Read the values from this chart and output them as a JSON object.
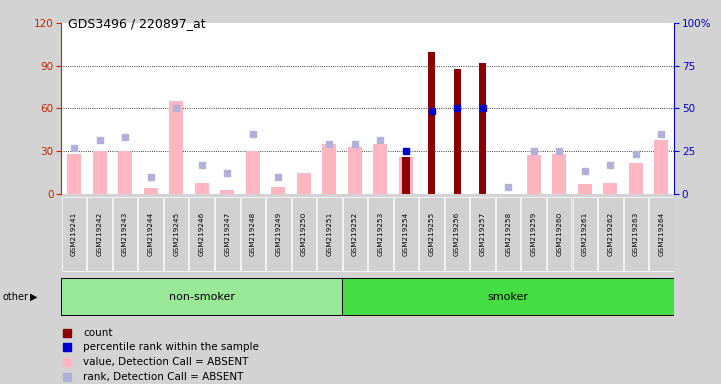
{
  "title": "GDS3496 / 220897_at",
  "samples": [
    "GSM219241",
    "GSM219242",
    "GSM219243",
    "GSM219244",
    "GSM219245",
    "GSM219246",
    "GSM219247",
    "GSM219248",
    "GSM219249",
    "GSM219250",
    "GSM219251",
    "GSM219252",
    "GSM219253",
    "GSM219254",
    "GSM219255",
    "GSM219256",
    "GSM219257",
    "GSM219258",
    "GSM219259",
    "GSM219260",
    "GSM219261",
    "GSM219262",
    "GSM219263",
    "GSM219264"
  ],
  "non_smoker_count": 11,
  "smoker_count": 13,
  "pink_bars": [
    28,
    30,
    30,
    4,
    65,
    8,
    3,
    30,
    5,
    15,
    35,
    33,
    35,
    26,
    0,
    0,
    0,
    0,
    27,
    28,
    7,
    8,
    22,
    38
  ],
  "red_bars": [
    0,
    0,
    0,
    0,
    0,
    0,
    0,
    0,
    0,
    0,
    0,
    0,
    0,
    26,
    100,
    88,
    92,
    0,
    0,
    0,
    0,
    0,
    0,
    0
  ],
  "blue_squares_y": [
    null,
    null,
    null,
    null,
    null,
    null,
    null,
    null,
    null,
    null,
    null,
    null,
    null,
    30,
    58,
    60,
    60,
    null,
    null,
    null,
    null,
    null,
    null,
    null
  ],
  "light_blue_squares_y": [
    32,
    38,
    40,
    12,
    60,
    20,
    15,
    42,
    12,
    null,
    35,
    35,
    38,
    null,
    null,
    null,
    null,
    5,
    30,
    30,
    16,
    20,
    28,
    42
  ],
  "left_ylim": [
    0,
    120
  ],
  "left_yticks": [
    0,
    30,
    60,
    90,
    120
  ],
  "right_yticks": [
    0,
    25,
    50,
    75,
    100
  ],
  "right_yticklabels": [
    "0",
    "25",
    "50",
    "75",
    "100%"
  ],
  "bg_color": "#d3d3d3",
  "plot_bg_color": "#ffffff",
  "non_smoker_color": "#98e898",
  "smoker_color": "#44dd44",
  "pink_color": "#ffb6c1",
  "red_color": "#8b0000",
  "blue_color": "#0000cc",
  "light_blue_color": "#b0b0d8",
  "left_tick_color": "#cc2200",
  "right_tick_color": "#0000cc",
  "legend_labels": [
    "count",
    "percentile rank within the sample",
    "value, Detection Call = ABSENT",
    "rank, Detection Call = ABSENT"
  ],
  "legend_colors": [
    "#8b0000",
    "#0000cc",
    "#ffb6c1",
    "#b0b0d8"
  ]
}
